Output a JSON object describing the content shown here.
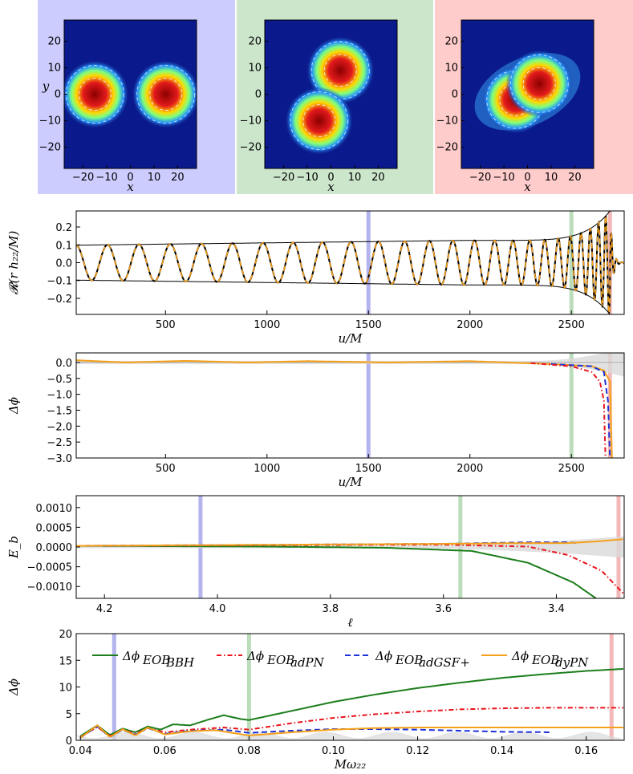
{
  "colors": {
    "blue_bg": "#ccccff",
    "green_bg": "#cce6cc",
    "red_bg": "#ffcccc",
    "vblue": "#b3b3ee",
    "vgreen": "#bbddbb",
    "vred": "#f4b8b8",
    "bbh": "#1b7d1b",
    "adpn": "#e8141b",
    "adgsf": "#1f32d6",
    "dypn": "#f5a01a",
    "nr": "#000000"
  },
  "chart_data": [
    {
      "type": "heatmap",
      "name": "snapshot-1",
      "xlabel": "x",
      "ylabel": "y",
      "xticks": [
        "−20",
        "−10",
        "0",
        "10",
        "20"
      ],
      "yticks": [
        "20",
        "10",
        "0",
        "−10",
        "−20"
      ],
      "xlim": [
        -28,
        28
      ],
      "ylim": [
        -28,
        28
      ],
      "blobs": [
        {
          "x": -15,
          "y": 0
        },
        {
          "x": 15,
          "y": 0
        }
      ]
    },
    {
      "type": "heatmap",
      "name": "snapshot-2",
      "xlabel": "x",
      "ylabel": "",
      "xticks": [
        "−20",
        "−10",
        "0",
        "10",
        "20"
      ],
      "yticks": [
        "20",
        "10",
        "0",
        "−10",
        "−20"
      ],
      "xlim": [
        -28,
        28
      ],
      "ylim": [
        -28,
        28
      ],
      "blobs": [
        {
          "x": 4,
          "y": 9
        },
        {
          "x": -5,
          "y": -10
        }
      ]
    },
    {
      "type": "heatmap",
      "name": "snapshot-3",
      "xlabel": "x",
      "ylabel": "",
      "xticks": [
        "−20",
        "−10",
        "0",
        "10",
        "20"
      ],
      "yticks": [
        "20",
        "10",
        "0",
        "−10",
        "−20"
      ],
      "xlim": [
        -28,
        28
      ],
      "ylim": [
        -28,
        28
      ],
      "blobs": [
        {
          "x": -5,
          "y": -2
        },
        {
          "x": 5,
          "y": 4
        }
      ]
    },
    {
      "type": "line",
      "name": "waveform",
      "xlabel": "u/M",
      "ylabel": "𝓡(r h₂₂/M)",
      "xlim": [
        60,
        2760
      ],
      "ylim": [
        -0.29,
        0.29
      ],
      "xticks": [
        "500",
        "1000",
        "1500",
        "2000",
        "2500"
      ],
      "xtick_values": [
        500,
        1000,
        1500,
        2000,
        2500
      ],
      "yticks": [
        "0.2",
        "0.1",
        "0.0",
        "−0.1",
        "−0.2"
      ],
      "ytick_values": [
        0.2,
        0.1,
        0.0,
        -0.1,
        -0.2
      ],
      "markers": [
        1500,
        2500,
        2690
      ],
      "envelope": {
        "u_start": 60,
        "amp_start": 0.098,
        "amp_mid": 0.125,
        "u_mid": 2000,
        "amp_merger": 0.29,
        "u_merger": 2690
      },
      "period_start": 155,
      "period_end": 30
    },
    {
      "type": "line",
      "name": "phase-difference-time",
      "xlabel": "u/M",
      "ylabel": "Δϕ",
      "xlim": [
        60,
        2760
      ],
      "ylim": [
        -3.0,
        0.3
      ],
      "xticks": [
        "500",
        "1000",
        "1500",
        "2000",
        "2500"
      ],
      "xtick_values": [
        500,
        1000,
        1500,
        2000,
        2500
      ],
      "yticks": [
        "0.0",
        "−0.5",
        "−1.0",
        "−1.5",
        "−2.0",
        "−2.5",
        "−3.0"
      ],
      "ytick_values": [
        0,
        -0.5,
        -1.0,
        -1.5,
        -2.0,
        -2.5,
        -3.0
      ],
      "markers": [
        1500,
        2500,
        2690
      ],
      "series": [
        {
          "name": "dypn",
          "points": [
            [
              60,
              0.07
            ],
            [
              300,
              0.0
            ],
            [
              600,
              0.05
            ],
            [
              900,
              0.0
            ],
            [
              1200,
              0.04
            ],
            [
              1600,
              0.0
            ],
            [
              2000,
              0.04
            ],
            [
              2400,
              -0.05
            ],
            [
              2600,
              -0.12
            ],
            [
              2660,
              -0.25
            ],
            [
              2690,
              -0.6
            ],
            [
              2700,
              -3.0
            ]
          ]
        },
        {
          "name": "adgsf",
          "points": [
            [
              2400,
              -0.05
            ],
            [
              2600,
              -0.12
            ],
            [
              2660,
              -0.3
            ],
            [
              2680,
              -1.2
            ],
            [
              2690,
              -3.0
            ]
          ]
        },
        {
          "name": "adpn",
          "points": [
            [
              2300,
              -0.02
            ],
            [
              2500,
              -0.12
            ],
            [
              2600,
              -0.3
            ],
            [
              2640,
              -0.6
            ],
            [
              2660,
              -1.2
            ],
            [
              2668,
              -3.0
            ]
          ]
        }
      ]
    },
    {
      "type": "line",
      "name": "binding-energy-difference",
      "xlabel": "ℓ",
      "ylabel": "E_b",
      "xlim": [
        4.25,
        3.28
      ],
      "ylim": [
        -0.0013,
        0.0013
      ],
      "xticks": [
        "4.2",
        "4.0",
        "3.8",
        "3.6",
        "3.4"
      ],
      "xtick_values": [
        4.2,
        4.0,
        3.8,
        3.6,
        3.4
      ],
      "yticks": [
        "0.0010",
        "0.0005",
        "0.0000",
        "−0.0005",
        "−0.0010"
      ],
      "ytick_values": [
        0.001,
        0.0005,
        0,
        -0.0005,
        -0.001
      ],
      "markers": [
        4.03,
        3.57,
        3.29
      ],
      "series": [
        {
          "name": "bbh",
          "points": [
            [
              4.25,
              3e-05
            ],
            [
              3.9,
              1e-05
            ],
            [
              3.7,
              -2e-05
            ],
            [
              3.55,
              -0.0001
            ],
            [
              3.45,
              -0.0004
            ],
            [
              3.37,
              -0.0009
            ],
            [
              3.33,
              -0.0013
            ]
          ]
        },
        {
          "name": "adpn",
          "points": [
            [
              4.25,
              3e-05
            ],
            [
              3.6,
              6e-05
            ],
            [
              3.45,
              1e-05
            ],
            [
              3.38,
              -0.0002
            ],
            [
              3.32,
              -0.0006
            ],
            [
              3.28,
              -0.0012
            ]
          ]
        },
        {
          "name": "adgsf",
          "points": [
            [
              4.25,
              3e-05
            ],
            [
              3.6,
              8e-05
            ],
            [
              3.45,
              0.00012
            ],
            [
              3.38,
              0.00012
            ],
            [
              3.36,
              0.0001
            ]
          ]
        },
        {
          "name": "dypn",
          "points": [
            [
              4.25,
              3e-05
            ],
            [
              3.6,
              8e-05
            ],
            [
              3.45,
              0.0001
            ],
            [
              3.38,
              0.0001
            ],
            [
              3.33,
              0.00014
            ],
            [
              3.28,
              0.0002
            ]
          ]
        }
      ]
    },
    {
      "type": "line",
      "name": "phase-difference-frequency",
      "xlabel": "Mω₂₂",
      "ylabel": "Δϕ",
      "xlim": [
        0.039,
        0.169
      ],
      "ylim": [
        0,
        20
      ],
      "xticks": [
        "0.04",
        "0.06",
        "0.08",
        "0.10",
        "0.12",
        "0.14",
        "0.16"
      ],
      "xtick_values": [
        0.04,
        0.06,
        0.08,
        0.1,
        0.12,
        0.14,
        0.16
      ],
      "yticks": [
        "20",
        "15",
        "10",
        "5",
        "0"
      ],
      "ytick_values": [
        20,
        15,
        10,
        5,
        0
      ],
      "markers": [
        0.048,
        0.08,
        0.166
      ],
      "series": [
        {
          "name": "bbh",
          "points": [
            [
              0.04,
              0.8
            ],
            [
              0.044,
              2.8
            ],
            [
              0.047,
              1.0
            ],
            [
              0.05,
              2.2
            ],
            [
              0.053,
              1.5
            ],
            [
              0.056,
              2.6
            ],
            [
              0.059,
              2.0
            ],
            [
              0.062,
              3.0
            ],
            [
              0.066,
              2.8
            ],
            [
              0.07,
              3.8
            ],
            [
              0.074,
              4.7
            ],
            [
              0.078,
              4.0
            ],
            [
              0.08,
              3.8
            ],
            [
              0.09,
              5.5
            ],
            [
              0.1,
              7.2
            ],
            [
              0.11,
              8.6
            ],
            [
              0.12,
              9.8
            ],
            [
              0.13,
              10.8
            ],
            [
              0.14,
              11.7
            ],
            [
              0.15,
              12.4
            ],
            [
              0.16,
              13.0
            ],
            [
              0.169,
              13.4
            ]
          ]
        },
        {
          "name": "adpn",
          "points": [
            [
              0.04,
              0.6
            ],
            [
              0.044,
              2.5
            ],
            [
              0.047,
              0.8
            ],
            [
              0.05,
              2.0
            ],
            [
              0.053,
              1.2
            ],
            [
              0.056,
              2.3
            ],
            [
              0.06,
              1.5
            ],
            [
              0.066,
              2.0
            ],
            [
              0.074,
              2.4
            ],
            [
              0.08,
              2.0
            ],
            [
              0.09,
              3.2
            ],
            [
              0.1,
              4.2
            ],
            [
              0.11,
              4.9
            ],
            [
              0.12,
              5.4
            ],
            [
              0.13,
              5.8
            ],
            [
              0.14,
              6.0
            ],
            [
              0.15,
              6.1
            ],
            [
              0.169,
              6.1
            ]
          ]
        },
        {
          "name": "adgsf",
          "points": [
            [
              0.04,
              0.5
            ],
            [
              0.044,
              2.6
            ],
            [
              0.047,
              0.6
            ],
            [
              0.05,
              2.0
            ],
            [
              0.053,
              1.0
            ],
            [
              0.056,
              2.3
            ],
            [
              0.06,
              1.2
            ],
            [
              0.066,
              1.8
            ],
            [
              0.074,
              2.0
            ],
            [
              0.08,
              1.4
            ],
            [
              0.09,
              1.8
            ],
            [
              0.1,
              2.1
            ],
            [
              0.11,
              2.1
            ],
            [
              0.12,
              2.0
            ],
            [
              0.13,
              1.8
            ],
            [
              0.14,
              1.6
            ],
            [
              0.152,
              1.5
            ]
          ]
        },
        {
          "name": "dypn",
          "points": [
            [
              0.04,
              0.5
            ],
            [
              0.044,
              2.8
            ],
            [
              0.047,
              0.6
            ],
            [
              0.05,
              2.1
            ],
            [
              0.053,
              0.9
            ],
            [
              0.056,
              2.4
            ],
            [
              0.06,
              1.1
            ],
            [
              0.066,
              1.7
            ],
            [
              0.072,
              1.9
            ],
            [
              0.08,
              0.9
            ],
            [
              0.09,
              1.5
            ],
            [
              0.1,
              2.0
            ],
            [
              0.11,
              2.3
            ],
            [
              0.12,
              2.4
            ],
            [
              0.14,
              2.4
            ],
            [
              0.169,
              2.4
            ]
          ]
        }
      ],
      "legend": [
        {
          "name": "bbh",
          "label": "Δϕ",
          "sub": "EOB",
          "subsub": "BBH",
          "style": "solid"
        },
        {
          "name": "adpn",
          "label": "Δϕ",
          "sub": "EOB",
          "subsub": "adPN",
          "style": "dashdot"
        },
        {
          "name": "adgsf",
          "label": "Δϕ",
          "sub": "EOB",
          "subsub": "adGSF+",
          "style": "dashed"
        },
        {
          "name": "dypn",
          "label": "Δϕ",
          "sub": "EOB",
          "subsub": "dyPN",
          "style": "solid"
        }
      ]
    }
  ]
}
